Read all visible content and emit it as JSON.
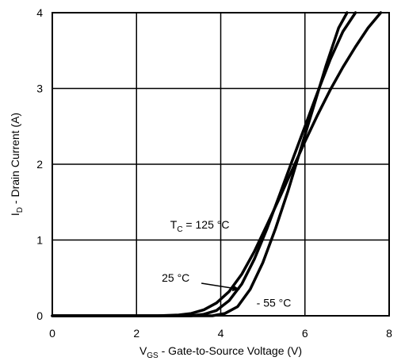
{
  "chart_data": {
    "type": "line",
    "title": "",
    "xlabel": {
      "main": "V",
      "sub": "GS",
      "rest": " - Gate-to-Source Voltage (V)"
    },
    "ylabel": {
      "main": "I",
      "sub": "D",
      "rest": " - Drain Current (A)"
    },
    "xlim": [
      0,
      8
    ],
    "ylim": [
      0,
      4
    ],
    "xticks": [
      "0",
      "2",
      "4",
      "6",
      "8"
    ],
    "yticks": [
      "0",
      "1",
      "2",
      "3",
      "4"
    ],
    "grid": true,
    "series": [
      {
        "name": {
          "main": "T",
          "sub": "C",
          "rest": " = 125 °C"
        },
        "x": [
          0,
          2.5,
          3.0,
          3.3,
          3.6,
          3.9,
          4.2,
          4.5,
          4.8,
          5.1,
          5.4,
          5.7,
          6.0,
          6.3,
          6.6,
          6.9,
          7.2,
          7.5,
          7.8
        ],
        "y": [
          0,
          0,
          0.01,
          0.03,
          0.08,
          0.17,
          0.32,
          0.55,
          0.85,
          1.2,
          1.56,
          1.93,
          2.3,
          2.65,
          2.98,
          3.28,
          3.55,
          3.8,
          4.0
        ]
      },
      {
        "name": {
          "main": "",
          "sub": "",
          "rest": "25 °C"
        },
        "x": [
          0,
          3.3,
          3.6,
          3.9,
          4.2,
          4.5,
          4.8,
          5.1,
          5.4,
          5.7,
          6.0,
          6.3,
          6.6,
          6.9,
          7.2
        ],
        "y": [
          0,
          0,
          0.02,
          0.07,
          0.2,
          0.42,
          0.75,
          1.15,
          1.6,
          2.05,
          2.5,
          2.95,
          3.38,
          3.75,
          4.0
        ]
      },
      {
        "name": {
          "main": "",
          "sub": "",
          "rest": "- 55 °C"
        },
        "x": [
          0,
          3.8,
          4.1,
          4.4,
          4.7,
          5.0,
          5.3,
          5.6,
          5.9,
          6.2,
          6.5,
          6.8,
          7.0
        ],
        "y": [
          0,
          0,
          0.03,
          0.12,
          0.35,
          0.7,
          1.15,
          1.65,
          2.2,
          2.75,
          3.3,
          3.8,
          4.0
        ]
      }
    ],
    "annotations": [
      {
        "series": 0,
        "text_x": 2.8,
        "text_y": 1.15,
        "arrow_to": null
      },
      {
        "series": 1,
        "text_x": 2.6,
        "text_y": 0.45,
        "arrow_to": [
          4.45,
          0.35
        ]
      },
      {
        "series": 2,
        "text_x": 4.85,
        "text_y": 0.12,
        "arrow_to": null
      }
    ]
  }
}
